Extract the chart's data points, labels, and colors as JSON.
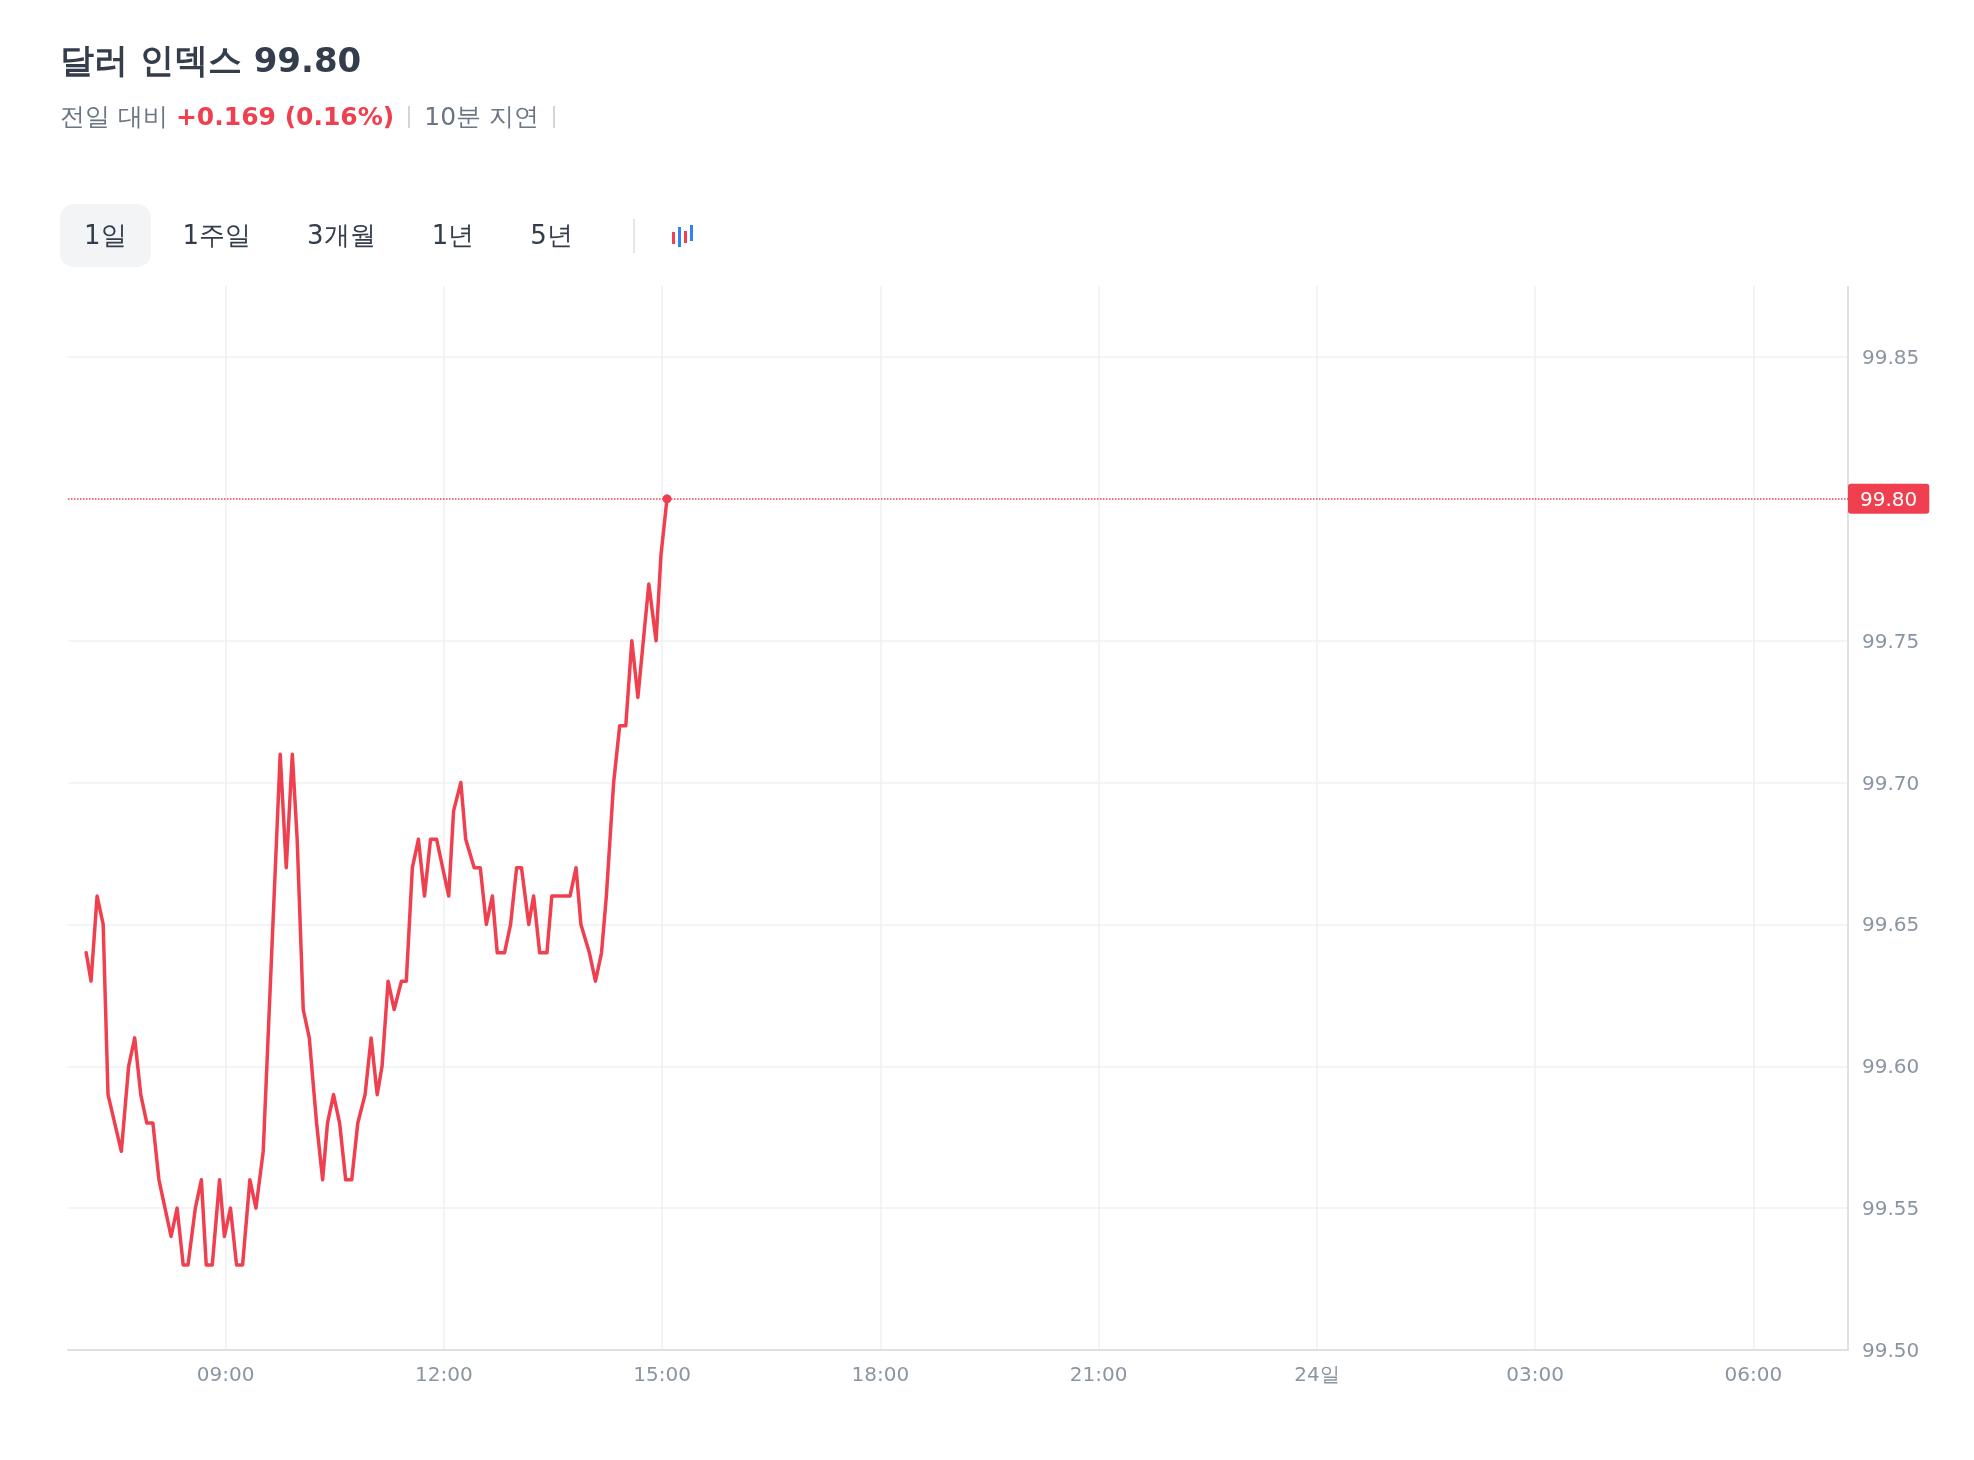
{
  "chart_data": {
    "type": "line",
    "title": "달러 인덱스 99.80",
    "subtitle": "전일 대비 +0.169 (0.16%)",
    "annotations": [
      "10분 지연",
      "1일",
      "1주일",
      "3개월",
      "1년",
      "5년"
    ],
    "x": [
      "--04-23T07:05",
      "--04-23T07:09",
      "--04-23T07:14",
      "--04-23T07:19",
      "--04-23T07:23",
      "--04-23T07:34",
      "--04-23T07:40",
      "--04-23T07:45",
      "--04-23T07:50",
      "--04-23T07:55",
      "--04-23T08:00",
      "--04-23T08:05",
      "--04-23T08:15",
      "--04-23T08:20",
      "--04-23T08:25",
      "--04-23T08:29",
      "--04-23T08:35",
      "--04-23T08:40",
      "--04-23T08:44",
      "--04-23T08:49",
      "--04-23T08:55",
      "--04-23T08:59",
      "--04-23T09:04",
      "--04-23T09:09",
      "--04-23T09:14",
      "--04-23T09:20",
      "--04-23T09:25",
      "--04-23T09:31",
      "--04-23T09:45",
      "--04-23T09:50",
      "--04-23T09:55",
      "--04-23T09:59",
      "--04-23T10:04",
      "--04-23T10:09",
      "--04-23T10:15",
      "--04-23T10:20",
      "--04-23T10:24",
      "--04-23T10:29",
      "--04-23T10:34",
      "--04-23T10:39",
      "--04-23T10:44",
      "--04-23T10:49",
      "--04-23T10:55",
      "--04-23T11:00",
      "--04-23T11:05",
      "--04-23T11:09",
      "--04-23T11:14",
      "--04-23T11:19",
      "--04-23T11:25",
      "--04-23T11:29",
      "--04-23T11:34",
      "--04-23T11:39",
      "--04-23T11:44",
      "--04-23T11:49",
      "--04-23T11:54",
      "--04-23T12:04",
      "--04-23T12:08",
      "--04-23T12:14",
      "--04-23T12:18",
      "--04-23T12:25",
      "--04-23T12:30",
      "--04-23T12:35",
      "--04-23T12:40",
      "--04-23T12:44",
      "--04-23T12:50",
      "--04-23T12:55",
      "--04-23T13:00",
      "--04-23T13:04",
      "--04-23T13:10",
      "--04-23T13:14",
      "--04-23T13:19",
      "--04-23T13:25",
      "--04-23T13:29",
      "--04-23T13:44",
      "--04-23T13:49",
      "--04-23T13:53",
      "--04-23T14:00",
      "--04-23T14:05",
      "--04-23T14:10",
      "--04-23T14:14",
      "--04-23T14:20",
      "--04-23T14:25",
      "--04-23T14:30",
      "--04-23T14:35",
      "--04-23T14:40",
      "--04-23T14:49",
      "--04-23T14:55",
      "--04-23T14:59",
      "--04-23T15:04"
    ],
    "series": [
      {
        "color": "#f0404f",
        "values": [
          99.64,
          99.63,
          99.66,
          99.65,
          99.59,
          99.57,
          99.6,
          99.61,
          99.59,
          99.58,
          99.58,
          99.56,
          99.54,
          99.55,
          99.53,
          99.53,
          99.55,
          99.56,
          99.53,
          99.53,
          99.56,
          99.54,
          99.55,
          99.53,
          99.53,
          99.56,
          99.55,
          99.57,
          99.71,
          99.67,
          99.71,
          99.68,
          99.62,
          99.61,
          99.58,
          99.56,
          99.58,
          99.59,
          99.58,
          99.56,
          99.56,
          99.58,
          99.59,
          99.61,
          99.59,
          99.6,
          99.63,
          99.62,
          99.63,
          99.63,
          99.67,
          99.68,
          99.66,
          99.68,
          99.68,
          99.66,
          99.69,
          99.7,
          99.68,
          99.67,
          99.67,
          99.65,
          99.66,
          99.64,
          99.64,
          99.65,
          99.67,
          99.67,
          99.65,
          99.66,
          99.64,
          99.64,
          99.66,
          99.66,
          99.67,
          99.65,
          99.64,
          99.63,
          99.64,
          99.66,
          99.7,
          99.72,
          99.72,
          99.75,
          99.73,
          99.77,
          99.75,
          99.78,
          99.8
        ]
      }
    ],
    "xlim": [
      "--04-23T06:50",
      "--04-24T07:18"
    ],
    "xticks": [
      {
        "value": "--04-23T09:00",
        "label": "09:00"
      },
      {
        "value": "--04-23T12:00",
        "label": "12:00"
      },
      {
        "value": "--04-23T15:00",
        "label": "15:00"
      },
      {
        "value": "--04-23T18:00",
        "label": "18:00"
      },
      {
        "value": "--04-23T21:00",
        "label": "21:00"
      },
      {
        "value": "--04-24T00:00",
        "label": "24일"
      },
      {
        "value": "--04-24T03:00",
        "label": "03:00"
      },
      {
        "value": "--04-24T06:00",
        "label": "06:00"
      }
    ],
    "ylim": [
      99.5,
      99.875
    ],
    "yticks": [
      {
        "value": 99.5,
        "label": "99.50"
      },
      {
        "value": 99.55,
        "label": "99.55"
      },
      {
        "value": 99.6,
        "label": "99.60"
      },
      {
        "value": 99.65,
        "label": "99.65"
      },
      {
        "value": 99.7,
        "label": "99.70"
      },
      {
        "value": 99.75,
        "label": "99.75"
      },
      {
        "value": 99.85,
        "label": "99.85"
      }
    ],
    "ref_lines": [
      {
        "axis": "y",
        "value": 99.8,
        "label": "99.80",
        "color": "#f0404f",
        "line_style": "dotted"
      }
    ],
    "grid": true,
    "line_style": "solid",
    "marker": "none"
  }
}
